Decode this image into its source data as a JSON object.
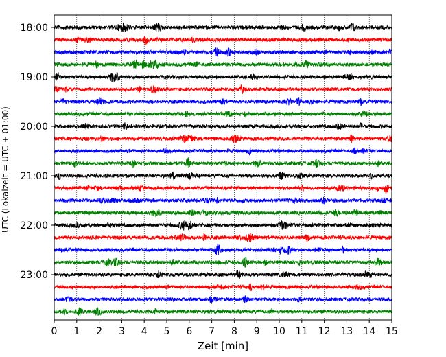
{
  "chart_data": {
    "type": "line",
    "title": "",
    "xlabel": "Zeit  [min]",
    "ylabel": "UTC (Lokalzeit = UTC + 01:00)",
    "xlim": [
      0,
      15
    ],
    "x_ticks": [
      "0",
      "1",
      "2",
      "3",
      "4",
      "5",
      "6",
      "7",
      "8",
      "9",
      "10",
      "11",
      "12",
      "13",
      "14",
      "15"
    ],
    "y_ticks": [
      "18:00",
      "19:00",
      "20:00",
      "21:00",
      "22:00",
      "23:00"
    ],
    "grid": "vertical dotted lines at each minute",
    "trace_interval_min": 15,
    "trace_colors": [
      "#000000",
      "#ff0000",
      "#0000ff",
      "#008000"
    ],
    "traces": [
      {
        "start": "18:00",
        "color": "#000000"
      },
      {
        "start": "18:15",
        "color": "#ff0000"
      },
      {
        "start": "18:30",
        "color": "#0000ff"
      },
      {
        "start": "18:45",
        "color": "#008000"
      },
      {
        "start": "19:00",
        "color": "#000000"
      },
      {
        "start": "19:15",
        "color": "#ff0000"
      },
      {
        "start": "19:30",
        "color": "#0000ff"
      },
      {
        "start": "19:45",
        "color": "#008000"
      },
      {
        "start": "20:00",
        "color": "#000000"
      },
      {
        "start": "20:15",
        "color": "#ff0000"
      },
      {
        "start": "20:30",
        "color": "#0000ff"
      },
      {
        "start": "20:45",
        "color": "#008000"
      },
      {
        "start": "21:00",
        "color": "#000000"
      },
      {
        "start": "21:15",
        "color": "#ff0000"
      },
      {
        "start": "21:30",
        "color": "#0000ff"
      },
      {
        "start": "21:45",
        "color": "#008000"
      },
      {
        "start": "22:00",
        "color": "#000000"
      },
      {
        "start": "22:15",
        "color": "#ff0000"
      },
      {
        "start": "22:30",
        "color": "#0000ff"
      },
      {
        "start": "22:45",
        "color": "#008000"
      },
      {
        "start": "23:00",
        "color": "#000000"
      },
      {
        "start": "23:15",
        "color": "#ff0000"
      },
      {
        "start": "23:30",
        "color": "#0000ff"
      },
      {
        "start": "23:45",
        "color": "#008000"
      }
    ]
  }
}
